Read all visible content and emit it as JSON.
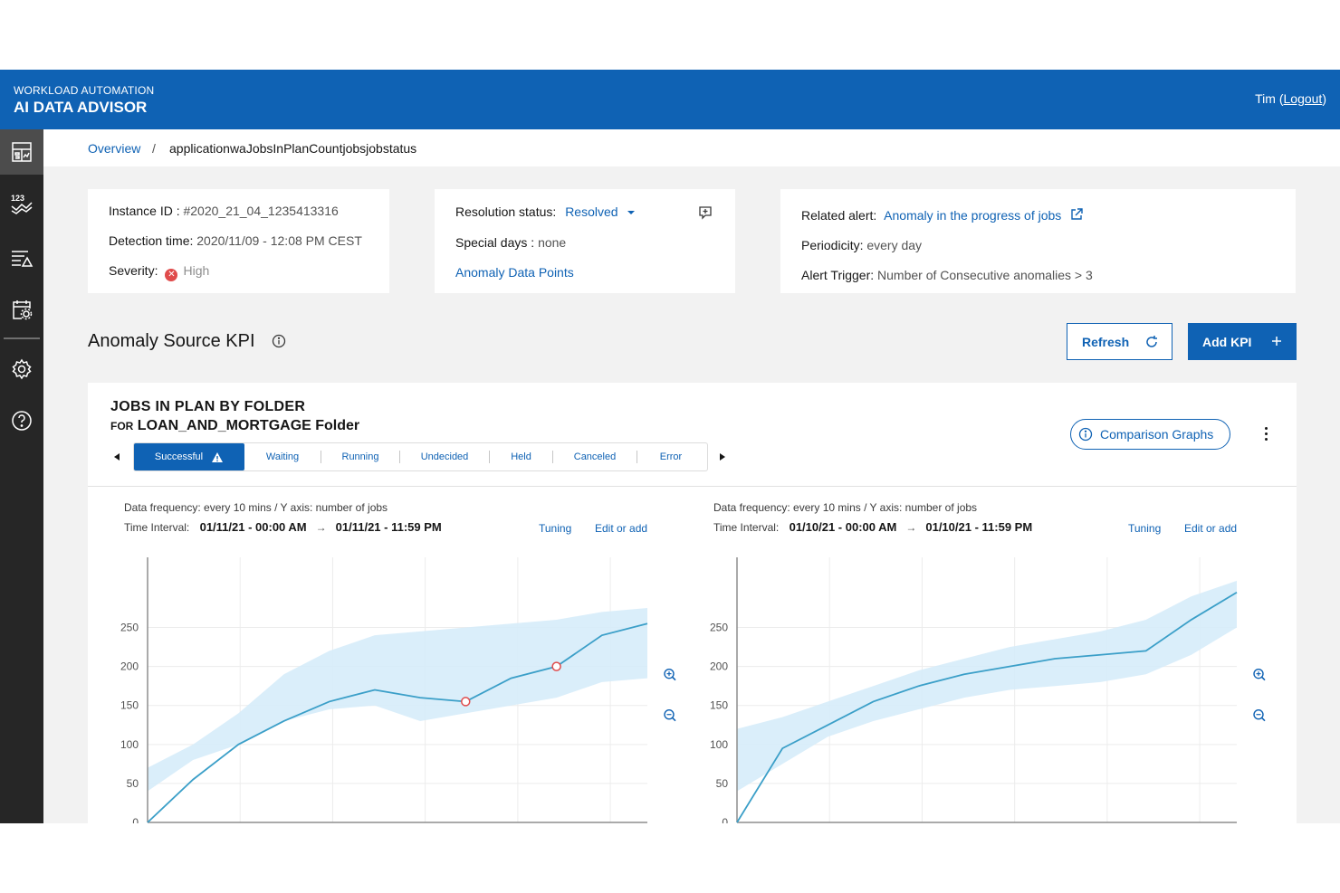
{
  "header": {
    "subtitle": "WORKLOAD AUTOMATION",
    "title": "AI DATA ADVISOR",
    "user": "Tim",
    "logout": "Logout"
  },
  "sidebar": {
    "items": [
      {
        "icon": "dashboard-icon",
        "active": true
      },
      {
        "icon": "metric-trend-icon"
      },
      {
        "icon": "alert-list-icon"
      },
      {
        "icon": "calendar-settings-icon"
      },
      {
        "icon": "gear-icon"
      },
      {
        "icon": "help-icon"
      }
    ]
  },
  "breadcrumb": {
    "root": "Overview",
    "separator": "/",
    "current": "applicationwaJobsInPlanCountjobsjobstatus"
  },
  "instance": {
    "id_label": "Instance ID :",
    "id_value": "#2020_21_04_1235413316",
    "detection_label": "Detection time:",
    "detection_value": "2020/11/09 - 12:08 PM CEST",
    "severity_label": "Severity:",
    "severity_value": "High"
  },
  "resolution": {
    "status_label": "Resolution status:",
    "status_value": "Resolved",
    "special_label": "Special days :",
    "special_value": "none",
    "datapoints_link": "Anomaly Data Points"
  },
  "alert": {
    "related_label": "Related alert:",
    "related_value": "Anomaly in the progress of jobs",
    "period_label": "Periodicity:",
    "period_value": "every day",
    "trigger_label": "Alert Trigger:",
    "trigger_value": "Number of Consecutive anomalies > 3"
  },
  "section": {
    "title": "Anomaly Source KPI",
    "refresh_label": "Refresh",
    "add_label": "Add KPI"
  },
  "panel": {
    "title": "JOBS IN PLAN BY FOLDER",
    "for": "FOR",
    "folder": "LOAN_AND_MORTGAGE Folder",
    "compare_label": "Comparison Graphs",
    "tabs": [
      "Successful",
      "Waiting",
      "Running",
      "Undecided",
      "Held",
      "Canceled",
      "Error"
    ]
  },
  "charts": [
    {
      "frequency": "Data frequency: every 10 mins  /  Y axis: number of jobs",
      "interval_label": "Time Interval:",
      "from": "01/11/21 - 00:00 AM",
      "to": "01/11/21 - 11:59 PM",
      "tuning": "Tuning",
      "edit": "Edit or add"
    },
    {
      "frequency": "Data frequency: every 10 mins  /  Y axis: number of jobs",
      "interval_label": "Time Interval:",
      "from": "01/10/21 - 00:00 AM",
      "to": "01/10/21 - 11:59 PM",
      "tuning": "Tuning",
      "edit": "Edit or add"
    }
  ],
  "chart_data": [
    {
      "type": "line",
      "x": [
        0,
        1,
        2,
        3,
        4,
        5,
        6,
        7,
        8,
        9,
        10,
        11
      ],
      "series": [
        {
          "values": [
            0,
            55,
            100,
            130,
            155,
            170,
            160,
            155,
            185,
            200,
            240,
            255
          ]
        }
      ],
      "band_lower": [
        40,
        80,
        100,
        130,
        145,
        150,
        130,
        140,
        150,
        160,
        180,
        185
      ],
      "band_upper": [
        70,
        100,
        140,
        190,
        220,
        240,
        245,
        250,
        255,
        260,
        270,
        275
      ],
      "anomalies": [
        {
          "x": 7,
          "y": 155
        },
        {
          "x": 9,
          "y": 200
        }
      ],
      "yticks": [
        0,
        50,
        100,
        150,
        200,
        250
      ],
      "ylim": [
        0,
        340
      ],
      "grid": true
    },
    {
      "type": "line",
      "x": [
        0,
        1,
        2,
        3,
        4,
        5,
        6,
        7,
        8,
        9,
        10,
        11
      ],
      "series": [
        {
          "values": [
            0,
            95,
            125,
            155,
            175,
            190,
            200,
            210,
            215,
            220,
            260,
            295
          ]
        }
      ],
      "band_lower": [
        40,
        75,
        110,
        130,
        145,
        160,
        170,
        175,
        180,
        190,
        215,
        250
      ],
      "band_upper": [
        120,
        135,
        155,
        175,
        195,
        210,
        225,
        235,
        245,
        260,
        290,
        310
      ],
      "anomalies": [],
      "yticks": [
        0,
        50,
        100,
        150,
        200,
        250
      ],
      "ylim": [
        0,
        340
      ],
      "grid": true
    }
  ]
}
